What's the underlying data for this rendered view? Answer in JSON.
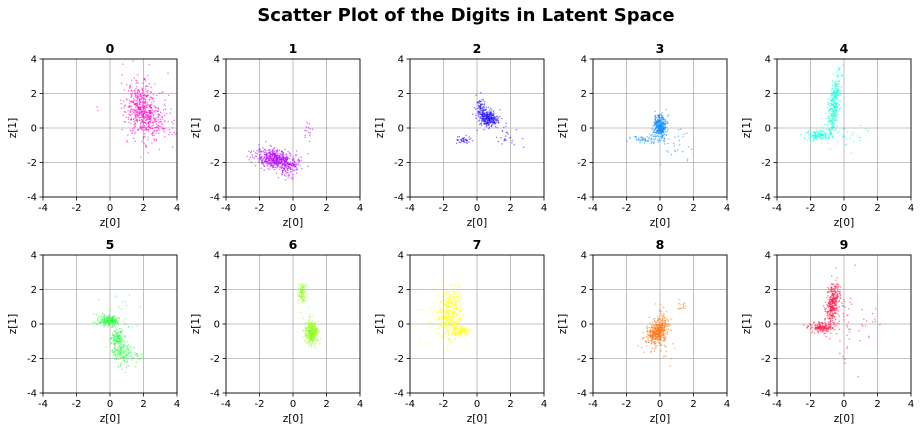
{
  "figure": {
    "title": "Scatter Plot of the Digits in Latent Space"
  },
  "chart_data": [
    {
      "type": "scatter",
      "title": "0",
      "xlabel": "z[0]",
      "ylabel": "z[1]",
      "xlim": [
        -4,
        4
      ],
      "ylim": [
        -4,
        4
      ],
      "xticks": [
        "-4",
        "-2",
        "0",
        "2",
        "4"
      ],
      "yticks": [
        "-4",
        "-2",
        "0",
        "2",
        "4"
      ],
      "grid": true,
      "color": "#ff00c8",
      "clusters": [
        {
          "cx": 1.9,
          "cy": 1.0,
          "sx": 0.45,
          "sy": 0.75,
          "rho": -0.2,
          "n": 420
        },
        {
          "cx": 2.6,
          "cy": 0.5,
          "sx": 0.7,
          "sy": 0.6,
          "rho": -0.4,
          "n": 160
        },
        {
          "cx": 1.8,
          "cy": 1.6,
          "sx": 1.0,
          "sy": 1.1,
          "rho": 0,
          "n": 60
        }
      ]
    },
    {
      "type": "scatter",
      "title": "1",
      "xlabel": "z[0]",
      "ylabel": "z[1]",
      "xlim": [
        -4,
        4
      ],
      "ylim": [
        -4,
        4
      ],
      "xticks": [
        "-4",
        "-2",
        "0",
        "2",
        "4"
      ],
      "yticks": [
        "-4",
        "-2",
        "0",
        "2",
        "4"
      ],
      "grid": true,
      "color": "#b300ff",
      "clusters": [
        {
          "cx": -1.0,
          "cy": -1.8,
          "sx": 0.6,
          "sy": 0.3,
          "rho": -0.35,
          "n": 520
        },
        {
          "cx": -0.3,
          "cy": -2.4,
          "sx": 0.3,
          "sy": 0.3,
          "rho": 0,
          "n": 70
        },
        {
          "cx": 0.9,
          "cy": -0.3,
          "sx": 0.15,
          "sy": 0.6,
          "rho": 0,
          "n": 15
        }
      ]
    },
    {
      "type": "scatter",
      "title": "2",
      "xlabel": "z[0]",
      "ylabel": "z[1]",
      "xlim": [
        -4,
        4
      ],
      "ylim": [
        -4,
        4
      ],
      "xticks": [
        "-4",
        "-2",
        "0",
        "2",
        "4"
      ],
      "yticks": [
        "-4",
        "-2",
        "0",
        "2",
        "4"
      ],
      "grid": true,
      "color": "#2a14ff",
      "clusters": [
        {
          "cx": 0.7,
          "cy": 0.55,
          "sx": 0.28,
          "sy": 0.22,
          "rho": 0,
          "n": 300
        },
        {
          "cx": 0.25,
          "cy": 1.1,
          "sx": 0.15,
          "sy": 0.3,
          "rho": 0,
          "n": 80
        },
        {
          "cx": -0.8,
          "cy": -0.7,
          "sx": 0.25,
          "sy": 0.1,
          "rho": 0,
          "n": 40
        },
        {
          "cx": 1.5,
          "cy": -0.5,
          "sx": 0.6,
          "sy": 0.6,
          "rho": -0.5,
          "n": 30
        }
      ]
    },
    {
      "type": "scatter",
      "title": "3",
      "xlabel": "z[0]",
      "ylabel": "z[1]",
      "xlim": [
        -4,
        4
      ],
      "ylim": [
        -4,
        4
      ],
      "xticks": [
        "-4",
        "-2",
        "0",
        "2",
        "4"
      ],
      "yticks": [
        "-4",
        "-2",
        "0",
        "2",
        "4"
      ],
      "grid": true,
      "color": "#0a8cff",
      "clusters": [
        {
          "cx": 0.0,
          "cy": 0.1,
          "sx": 0.18,
          "sy": 0.35,
          "rho": 0,
          "n": 320
        },
        {
          "cx": -0.8,
          "cy": -0.6,
          "sx": 0.45,
          "sy": 0.12,
          "rho": 0,
          "n": 60
        },
        {
          "cx": 0.8,
          "cy": -0.8,
          "sx": 0.6,
          "sy": 0.5,
          "rho": 0,
          "n": 30
        }
      ]
    },
    {
      "type": "scatter",
      "title": "4",
      "xlabel": "z[0]",
      "ylabel": "z[1]",
      "xlim": [
        -4,
        4
      ],
      "ylim": [
        -4,
        4
      ],
      "xticks": [
        "-4",
        "-2",
        "0",
        "2",
        "4"
      ],
      "yticks": [
        "-4",
        "-2",
        "0",
        "2",
        "4"
      ],
      "grid": true,
      "color": "#14ffd8",
      "clusters": [
        {
          "cx": -0.6,
          "cy": 1.3,
          "sx": 0.2,
          "sy": 0.9,
          "rho": 0.5,
          "n": 360
        },
        {
          "cx": -1.5,
          "cy": -0.4,
          "sx": 0.4,
          "sy": 0.15,
          "rho": 0,
          "n": 130
        },
        {
          "cx": 0.5,
          "cy": -0.5,
          "sx": 0.6,
          "sy": 0.5,
          "rho": 0,
          "n": 25
        }
      ]
    },
    {
      "type": "scatter",
      "title": "5",
      "xlabel": "z[0]",
      "ylabel": "z[1]",
      "xlim": [
        -4,
        4
      ],
      "ylim": [
        -4,
        4
      ],
      "xticks": [
        "-4",
        "-2",
        "0",
        "2",
        "4"
      ],
      "yticks": [
        "-4",
        "-2",
        "0",
        "2",
        "4"
      ],
      "grid": true,
      "color": "#22ff3c",
      "clusters": [
        {
          "cx": -0.05,
          "cy": 0.2,
          "sx": 0.3,
          "sy": 0.14,
          "rho": 0,
          "n": 200
        },
        {
          "cx": 0.5,
          "cy": -1.1,
          "sx": 0.25,
          "sy": 0.55,
          "rho": -0.3,
          "n": 220
        },
        {
          "cx": 1.2,
          "cy": -1.8,
          "sx": 0.4,
          "sy": 0.4,
          "rho": 0,
          "n": 70
        },
        {
          "cx": 0.5,
          "cy": 0.5,
          "sx": 0.8,
          "sy": 0.6,
          "rho": 0,
          "n": 25
        }
      ]
    },
    {
      "type": "scatter",
      "title": "6",
      "xlabel": "z[0]",
      "ylabel": "z[1]",
      "xlim": [
        -4,
        4
      ],
      "ylim": [
        -4,
        4
      ],
      "xticks": [
        "-4",
        "-2",
        "0",
        "2",
        "4"
      ],
      "yticks": [
        "-4",
        "-2",
        "0",
        "2",
        "4"
      ],
      "grid": true,
      "color": "#8cff14",
      "clusters": [
        {
          "cx": 1.1,
          "cy": -0.5,
          "sx": 0.2,
          "sy": 0.3,
          "rho": 0,
          "n": 320
        },
        {
          "cx": 0.55,
          "cy": 1.8,
          "sx": 0.12,
          "sy": 0.3,
          "rho": 0,
          "n": 90
        },
        {
          "cx": 0.8,
          "cy": 0.6,
          "sx": 0.2,
          "sy": 0.8,
          "rho": 0,
          "n": 10
        }
      ]
    },
    {
      "type": "scatter",
      "title": "7",
      "xlabel": "z[0]",
      "ylabel": "z[1]",
      "xlim": [
        -4,
        4
      ],
      "ylim": [
        -4,
        4
      ],
      "xticks": [
        "-4",
        "-2",
        "0",
        "2",
        "4"
      ],
      "yticks": [
        "-4",
        "-2",
        "0",
        "2",
        "4"
      ],
      "grid": true,
      "color": "#ffff14",
      "clusters": [
        {
          "cx": -1.6,
          "cy": 0.7,
          "sx": 0.35,
          "sy": 0.8,
          "rho": 0.2,
          "n": 380
        },
        {
          "cx": -1.0,
          "cy": -0.4,
          "sx": 0.35,
          "sy": 0.15,
          "rho": 0,
          "n": 140
        },
        {
          "cx": -2.0,
          "cy": 0.6,
          "sx": 0.8,
          "sy": 0.7,
          "rho": 0,
          "n": 70
        }
      ]
    },
    {
      "type": "scatter",
      "title": "8",
      "xlabel": "z[0]",
      "ylabel": "z[1]",
      "xlim": [
        -4,
        4
      ],
      "ylim": [
        -4,
        4
      ],
      "xticks": [
        "-4",
        "-2",
        "0",
        "2",
        "4"
      ],
      "yticks": [
        "-4",
        "-2",
        "0",
        "2",
        "4"
      ],
      "grid": true,
      "color": "#ff7514",
      "clusters": [
        {
          "cx": -0.2,
          "cy": -0.5,
          "sx": 0.3,
          "sy": 0.35,
          "rho": 0.3,
          "n": 380
        },
        {
          "cx": 0.1,
          "cy": 0.0,
          "sx": 0.2,
          "sy": 0.4,
          "rho": 0,
          "n": 80
        },
        {
          "cx": 1.3,
          "cy": 1.1,
          "sx": 0.15,
          "sy": 0.15,
          "rho": 0,
          "n": 15
        },
        {
          "cx": 0.2,
          "cy": -1.2,
          "sx": 0.5,
          "sy": 0.6,
          "rho": 0,
          "n": 30
        }
      ]
    },
    {
      "type": "scatter",
      "title": "9",
      "xlabel": "z[0]",
      "ylabel": "z[1]",
      "xlim": [
        -4,
        4
      ],
      "ylim": [
        -4,
        4
      ],
      "xticks": [
        "-4",
        "-2",
        "0",
        "2",
        "4"
      ],
      "yticks": [
        "-4",
        "-2",
        "0",
        "2",
        "4"
      ],
      "grid": true,
      "color": "#ff1446",
      "clusters": [
        {
          "cx": -0.7,
          "cy": 1.1,
          "sx": 0.2,
          "sy": 0.65,
          "rho": 0.4,
          "n": 320
        },
        {
          "cx": -1.4,
          "cy": -0.2,
          "sx": 0.4,
          "sy": 0.15,
          "rho": 0,
          "n": 160
        },
        {
          "cx": 0.0,
          "cy": 0.3,
          "sx": 0.35,
          "sy": 1.3,
          "rho": 0,
          "n": 50
        },
        {
          "cx": 1.5,
          "cy": 0.0,
          "sx": 0.8,
          "sy": 0.8,
          "rho": 0,
          "n": 15
        }
      ]
    }
  ]
}
